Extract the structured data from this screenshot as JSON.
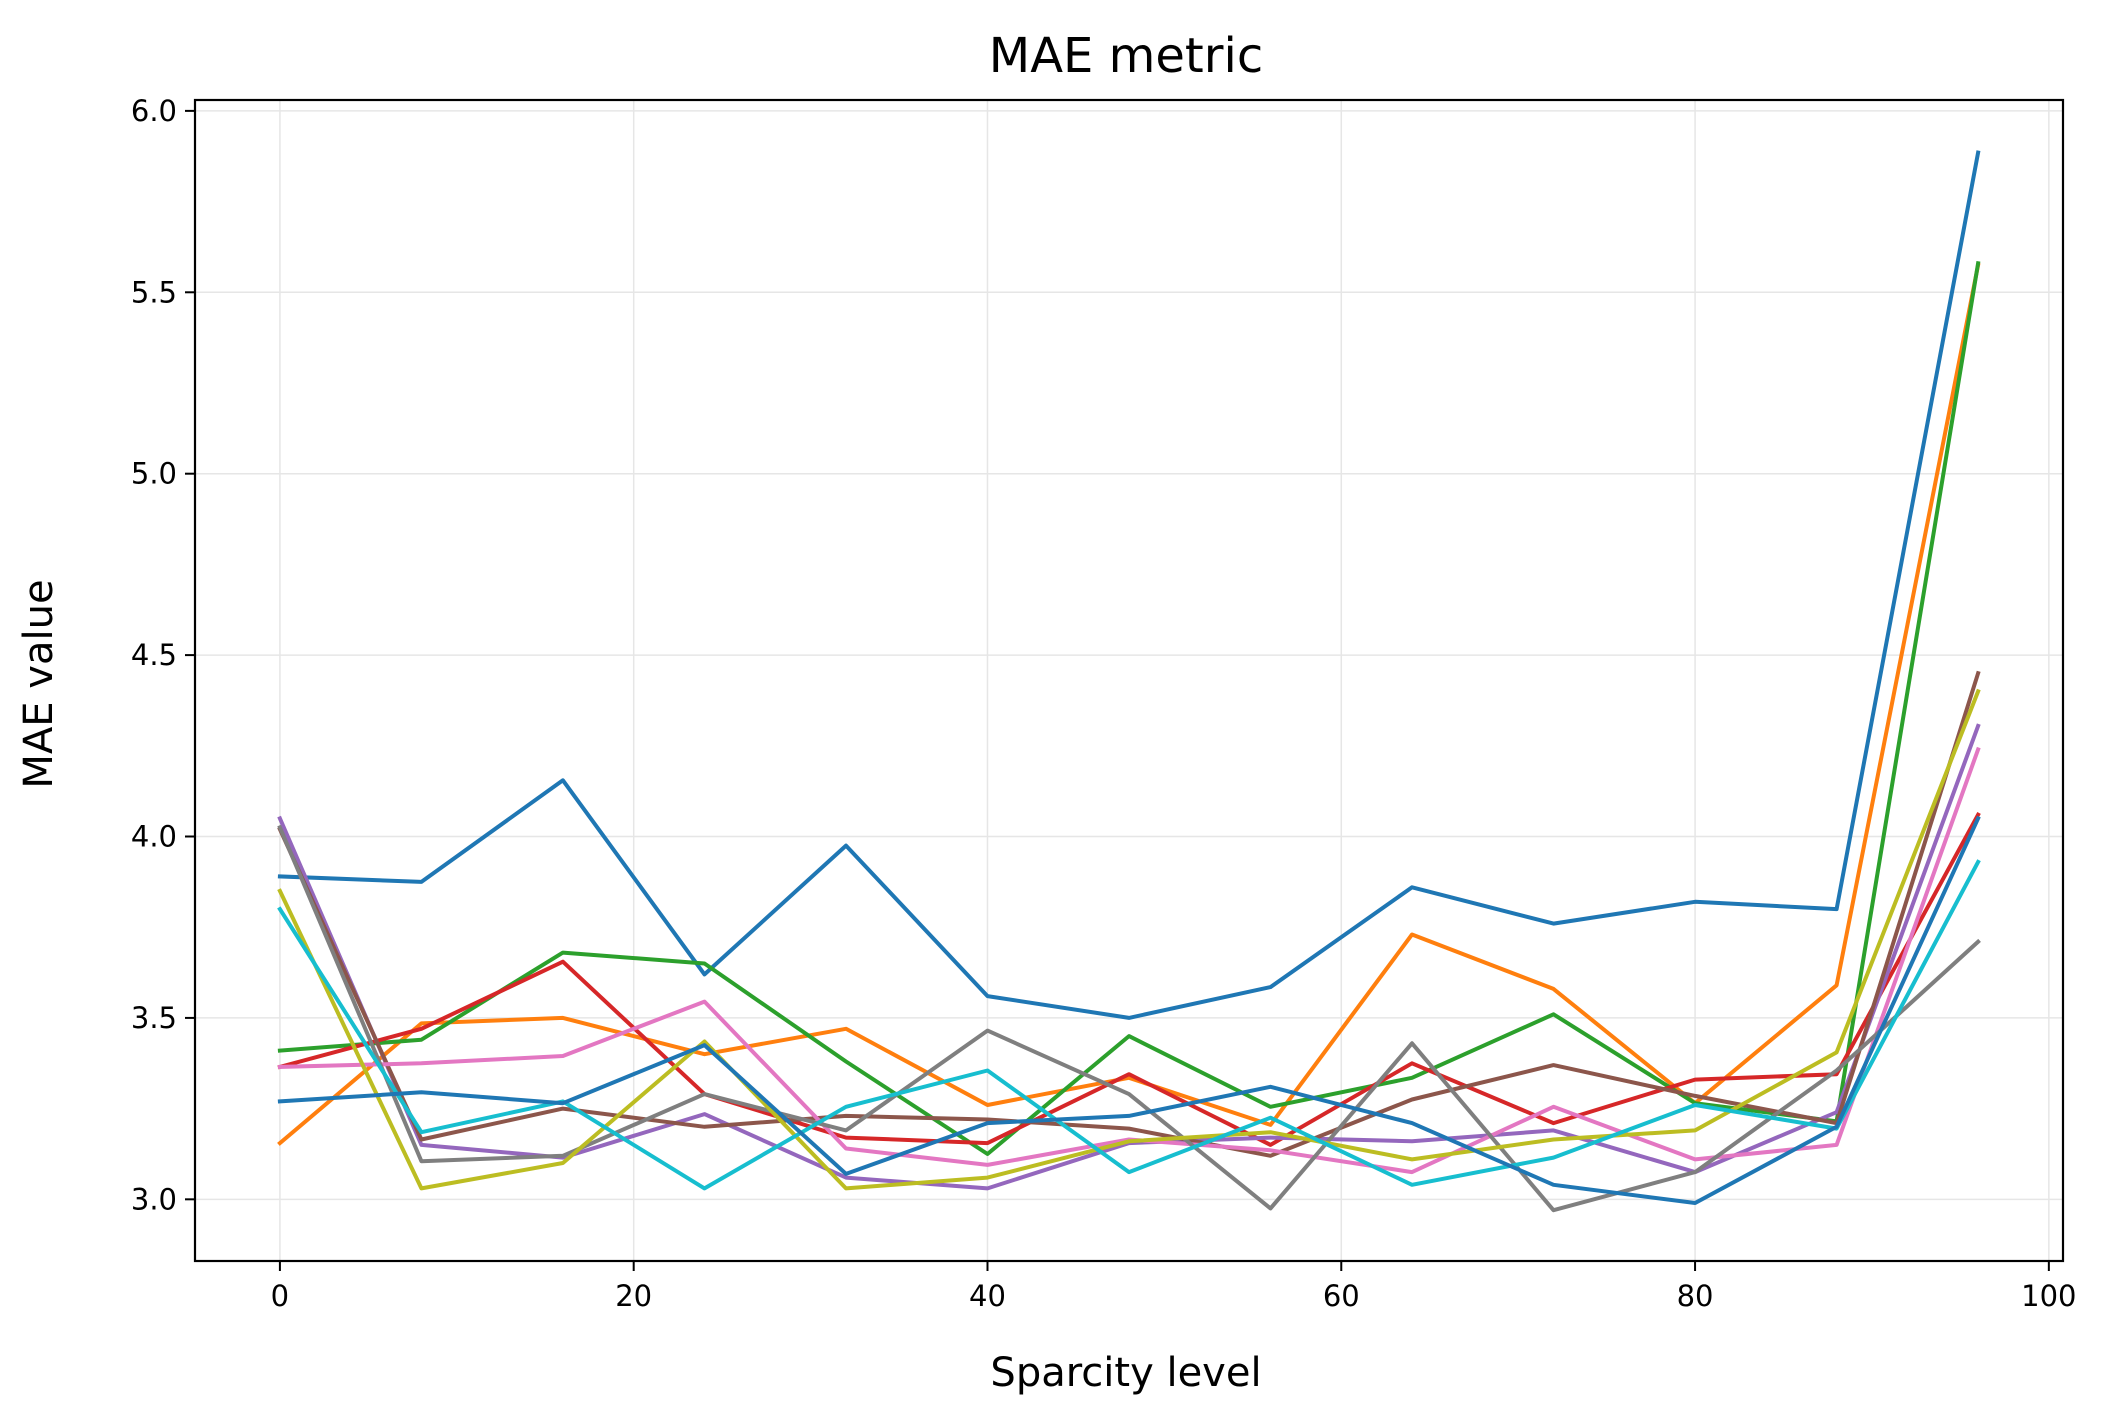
{
  "chart_data": {
    "type": "line",
    "title": "MAE metric",
    "xlabel": "Sparcity level",
    "ylabel": "MAE value",
    "xlim": [
      -4.8,
      100.8
    ],
    "ylim": [
      2.83,
      6.03
    ],
    "xticks": [
      0,
      20,
      40,
      60,
      80,
      100
    ],
    "yticks": [
      3.0,
      3.5,
      4.0,
      4.5,
      5.0,
      5.5,
      6.0
    ],
    "xtick_labels": [
      "0",
      "20",
      "40",
      "60",
      "80",
      "100"
    ],
    "ytick_labels": [
      "3.0",
      "3.5",
      "4.0",
      "4.5",
      "5.0",
      "5.5",
      "6.0"
    ],
    "grid": true,
    "x": [
      0,
      8,
      16,
      24,
      32,
      40,
      48,
      56,
      64,
      72,
      80,
      88,
      96
    ],
    "series": [
      {
        "color": "#1f77b4",
        "values": [
          3.89,
          3.875,
          4.155,
          3.62,
          3.975,
          3.56,
          3.5,
          3.585,
          3.86,
          3.76,
          3.82,
          3.8,
          5.885
        ]
      },
      {
        "color": "#ff7f0e",
        "values": [
          3.155,
          3.485,
          3.5,
          3.4,
          3.47,
          3.26,
          3.335,
          3.205,
          3.73,
          3.58,
          3.265,
          3.59,
          5.575
        ]
      },
      {
        "color": "#2ca02c",
        "values": [
          3.41,
          3.44,
          3.68,
          3.65,
          3.38,
          3.125,
          3.45,
          3.255,
          3.335,
          3.51,
          3.265,
          3.215,
          5.58
        ]
      },
      {
        "color": "#d62728",
        "values": [
          3.365,
          3.47,
          3.655,
          3.29,
          3.17,
          3.155,
          3.345,
          3.15,
          3.375,
          3.21,
          3.33,
          3.345,
          4.06
        ]
      },
      {
        "color": "#9467bd",
        "values": [
          4.05,
          3.15,
          3.115,
          3.235,
          3.06,
          3.03,
          3.155,
          3.17,
          3.16,
          3.19,
          3.075,
          3.24,
          4.305
        ]
      },
      {
        "color": "#8c564b",
        "values": [
          4.02,
          3.165,
          3.25,
          3.2,
          3.23,
          3.22,
          3.195,
          3.12,
          3.275,
          3.37,
          3.285,
          3.21,
          4.45
        ]
      },
      {
        "color": "#e377c2",
        "values": [
          3.365,
          3.375,
          3.395,
          3.545,
          3.14,
          3.095,
          3.165,
          3.135,
          3.075,
          3.255,
          3.11,
          3.15,
          4.24
        ]
      },
      {
        "color": "#7f7f7f",
        "values": [
          4.025,
          3.105,
          3.12,
          3.29,
          3.19,
          3.465,
          3.29,
          2.975,
          3.43,
          2.97,
          3.075,
          3.355,
          3.71
        ]
      },
      {
        "color": "#bcbd22",
        "values": [
          3.85,
          3.03,
          3.1,
          3.435,
          3.03,
          3.06,
          3.16,
          3.185,
          3.11,
          3.165,
          3.19,
          3.405,
          4.4
        ]
      },
      {
        "color": "#17becf",
        "values": [
          3.8,
          3.185,
          3.27,
          3.03,
          3.255,
          3.355,
          3.075,
          3.225,
          3.04,
          3.115,
          3.26,
          3.195,
          3.93
        ]
      },
      {
        "color": "#1f77b4",
        "values": [
          3.27,
          3.295,
          3.265,
          3.425,
          3.07,
          3.21,
          3.23,
          3.31,
          3.21,
          3.04,
          2.99,
          3.2,
          4.05
        ]
      }
    ]
  }
}
